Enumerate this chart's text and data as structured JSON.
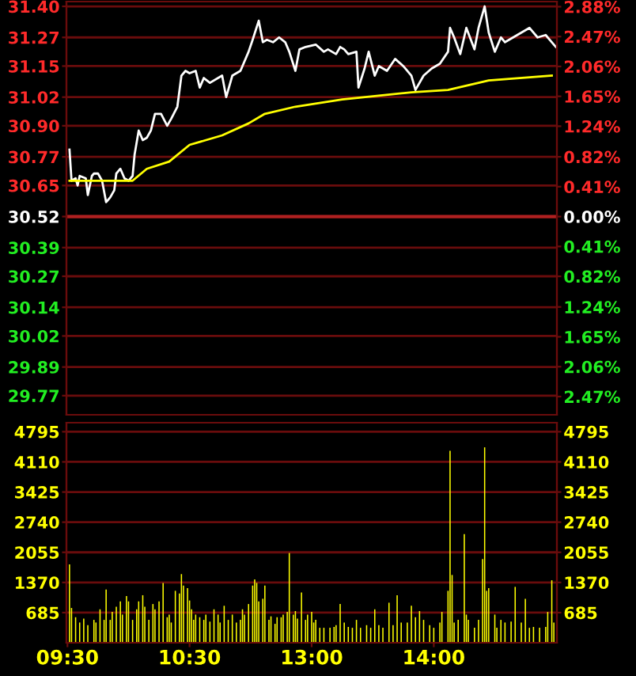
{
  "chart_data": [
    {
      "type": "line",
      "series": [
        {
          "color": "#ffffff",
          "values": [
            null,
            30.8,
            30.67,
            null,
            30.68,
            30.65,
            30.69,
            null,
            null,
            30.68,
            30.61,
            null,
            30.69,
            30.7,
            null,
            30.7,
            null,
            30.67,
            null,
            30.58,
            null,
            30.6,
            null,
            30.63,
            30.7,
            null,
            30.72,
            null,
            30.68,
            null,
            30.67,
            null,
            30.69,
            30.78,
            null,
            30.88,
            null,
            30.84,
            null,
            30.85,
            null,
            30.88,
            null,
            30.95,
            null,
            null,
            30.95,
            null,
            null,
            30.9,
            null,
            30.93,
            null,
            null,
            30.98,
            null,
            31.11,
            null,
            31.13,
            null,
            31.12,
            null,
            null,
            31.13,
            null,
            31.06,
            null,
            31.1,
            null,
            null,
            31.08,
            null,
            null,
            null,
            31.1,
            null,
            31.11,
            null,
            31.02,
            null,
            null,
            31.11,
            null,
            null,
            null,
            31.13,
            null,
            null,
            null,
            31.21,
            null,
            31.26,
            null,
            null,
            31.34,
            null,
            31.25,
            null,
            31.26,
            null,
            null,
            31.25,
            null,
            null,
            31.27,
            null,
            null,
            31.25,
            null,
            31.21,
            null,
            null,
            31.13,
            null,
            31.22,
            null,
            null,
            31.23,
            null,
            null,
            null,
            null,
            31.24,
            null,
            null,
            null,
            31.21,
            null,
            31.22,
            null,
            null,
            null,
            31.2,
            null,
            31.23,
            null,
            31.22,
            null,
            31.2,
            null,
            null,
            null,
            31.21,
            31.06,
            null,
            null,
            31.14,
            null,
            31.21,
            null,
            null,
            31.11,
            null,
            31.15,
            null,
            null,
            null,
            31.13,
            null,
            null,
            null,
            31.18,
            null,
            null,
            null,
            31.15,
            null,
            null,
            null,
            31.11,
            null,
            31.05,
            null,
            null,
            null,
            31.11,
            null,
            null,
            null,
            31.14,
            null,
            null,
            null,
            31.16,
            null,
            null,
            null,
            31.21,
            31.31,
            null,
            31.27,
            null,
            null,
            31.2,
            null,
            null,
            31.31,
            null,
            null,
            null,
            31.22,
            null,
            31.31,
            null,
            null,
            31.4,
            null,
            31.29,
            null,
            null,
            31.21,
            null,
            null,
            31.27,
            null,
            31.25,
            null,
            null,
            null,
            31.27,
            null,
            null,
            null,
            31.29,
            null,
            null,
            null,
            31.31,
            null,
            null,
            null,
            31.27,
            null,
            null,
            null,
            31.28,
            null,
            31.26,
            null,
            null,
            31.23
          ]
        },
        {
          "color": "#ffff00",
          "values": [
            null,
            30.67,
            null,
            null,
            null,
            null,
            null,
            null,
            null,
            null,
            null,
            null,
            null,
            null,
            null,
            null,
            null,
            null,
            null,
            null,
            null,
            null,
            null,
            null,
            null,
            null,
            null,
            null,
            null,
            null,
            null,
            null,
            30.67,
            null,
            null,
            null,
            null,
            null,
            null,
            30.72,
            null,
            null,
            null,
            null,
            null,
            null,
            null,
            null,
            null,
            null,
            30.75,
            null,
            null,
            null,
            null,
            null,
            null,
            null,
            null,
            null,
            30.82,
            null,
            null,
            null,
            null,
            null,
            null,
            null,
            null,
            null,
            null,
            null,
            null,
            null,
            null,
            null,
            30.86,
            null,
            null,
            null,
            null,
            null,
            null,
            null,
            null,
            null,
            null,
            null,
            null,
            30.91,
            null,
            null,
            null,
            null,
            null,
            null,
            null,
            30.95,
            null,
            null,
            null,
            null,
            null,
            null,
            null,
            null,
            null,
            null,
            null,
            null,
            null,
            null,
            30.98,
            null,
            null,
            null,
            null,
            null,
            null,
            null,
            null,
            null,
            null,
            null,
            null,
            null,
            null,
            null,
            null,
            null,
            null,
            null,
            null,
            null,
            null,
            31.01,
            null,
            null,
            null,
            null,
            null,
            null,
            null,
            null,
            null,
            null,
            null,
            null,
            null,
            null,
            null,
            null,
            null,
            null,
            null,
            null,
            null,
            null,
            null,
            null,
            null,
            null,
            null,
            null,
            null,
            null,
            null,
            null,
            null,
            31.04,
            null,
            null,
            null,
            null,
            null,
            null,
            null,
            null,
            null,
            null,
            null,
            null,
            null,
            null,
            null,
            null,
            null,
            31.05,
            null,
            null,
            null,
            null,
            null,
            null,
            null,
            null,
            null,
            null,
            null,
            null,
            null,
            null,
            null,
            null,
            null,
            null,
            null,
            31.09,
            null,
            null,
            null,
            null,
            null,
            null,
            null,
            null,
            null,
            null,
            null,
            null,
            null,
            null,
            null,
            null,
            null,
            null,
            null,
            null,
            null,
            null,
            null,
            null,
            null,
            null,
            null,
            null,
            null,
            null,
            31.11,
            null,
            null
          ]
        }
      ],
      "ylim": [
        29.69,
        31.42
      ],
      "yticks": [
        {
          "value": 31.4,
          "label": "31.40"
        },
        31.27,
        {
          "value": 31.15,
          "label": "31.15"
        },
        31.02,
        {
          "value": 30.9,
          "label": "30.90"
        },
        30.77,
        30.65,
        30.52,
        30.39,
        30.27,
        30.14,
        30.02,
        29.89,
        29.77
      ],
      "y2lim": [
        -2.72,
        2.95
      ],
      "y2ticks": [
        {
          "value": 2.88,
          "label": "2.88%"
        },
        {
          "value": 2.47,
          "label": "2.47%"
        },
        {
          "value": 2.06,
          "label": "2.06%"
        },
        {
          "value": 1.65,
          "label": "1.65%"
        },
        {
          "value": 1.24,
          "label": "1.24%"
        },
        {
          "value": 0.82,
          "label": "0.82%"
        },
        {
          "value": 0.41,
          "label": "0.41%"
        },
        {
          "value": 0,
          "label": "0.00%"
        },
        {
          "value": -0.41,
          "label": "0.41%"
        },
        {
          "value": -0.82,
          "label": "0.82%"
        },
        {
          "value": -1.24,
          "label": "1.24%"
        },
        {
          "value": -1.65,
          "label": "1.65%"
        },
        {
          "value": -2.06,
          "label": "2.06%"
        },
        {
          "value": -2.47,
          "label": "2.47%"
        }
      ],
      "ref_lines": [
        {
          "axis": "y",
          "value": 30.52,
          "color": "#b02020"
        }
      ],
      "grid": "y",
      "tick_labels": "y"
    },
    {
      "type": "bar",
      "color": "#ffff00",
      "categories": [
        "09:30",
        null,
        null,
        null,
        null,
        null,
        null,
        null,
        null,
        null,
        null,
        null,
        null,
        null,
        null,
        null,
        null,
        null,
        null,
        null,
        null,
        null,
        null,
        null,
        null,
        null,
        null,
        null,
        null,
        null,
        null,
        null,
        null,
        null,
        null,
        null,
        null,
        null,
        null,
        null,
        null,
        null,
        null,
        null,
        null,
        null,
        null,
        null,
        null,
        null,
        null,
        null,
        null,
        null,
        null,
        null,
        null,
        null,
        null,
        null,
        "10:30",
        null,
        null,
        null,
        null,
        null,
        null,
        null,
        null,
        null,
        null,
        null,
        null,
        null,
        null,
        null,
        null,
        null,
        null,
        null,
        null,
        null,
        null,
        null,
        null,
        null,
        null,
        null,
        null,
        null,
        null,
        null,
        null,
        null,
        null,
        null,
        null,
        null,
        null,
        null,
        null,
        null,
        null,
        null,
        null,
        null,
        null,
        null,
        null,
        null,
        null,
        null,
        null,
        null,
        null,
        null,
        null,
        null,
        null,
        null,
        "13:00",
        null,
        null,
        null,
        null,
        null,
        null,
        null,
        null,
        null,
        null,
        null,
        null,
        null,
        null,
        null,
        null,
        null,
        null,
        null,
        null,
        null,
        null,
        null,
        null,
        null,
        null,
        null,
        null,
        null,
        null,
        null,
        null,
        null,
        null,
        null,
        null,
        null,
        null,
        null,
        null,
        null,
        null,
        null,
        null,
        null,
        null,
        null,
        null,
        null,
        null,
        null,
        null,
        null,
        null,
        null,
        null,
        null,
        null,
        null,
        "14:00",
        null,
        null,
        null,
        null,
        null,
        null,
        null,
        null,
        null,
        null,
        null,
        null,
        null,
        null,
        null,
        null,
        null,
        null,
        null,
        null,
        null,
        null,
        null,
        null,
        null,
        null,
        null,
        null,
        null,
        null,
        null,
        null,
        null,
        null,
        null,
        null,
        null,
        null,
        null,
        null,
        null,
        null,
        null,
        null,
        null,
        null,
        null,
        null,
        null,
        null,
        null,
        null,
        null,
        null,
        null,
        null,
        null,
        null,
        null,
        null
      ],
      "values": [
        null,
        1780,
        790,
        null,
        580,
        null,
        460,
        null,
        550,
        null,
        400,
        null,
        null,
        520,
        460,
        null,
        760,
        null,
        520,
        1210,
        null,
        520,
        700,
        null,
        820,
        null,
        940,
        640,
        null,
        1060,
        940,
        null,
        520,
        null,
        760,
        940,
        null,
        1080,
        820,
        null,
        520,
        null,
        880,
        760,
        null,
        940,
        null,
        1360,
        null,
        580,
        640,
        460,
        null,
        1180,
        null,
        1120,
        1560,
        1300,
        null,
        1240,
        960,
        760,
        520,
        640,
        null,
        580,
        null,
        520,
        640,
        null,
        480,
        null,
        760,
        null,
        640,
        460,
        null,
        840,
        null,
        520,
        null,
        640,
        null,
        460,
        null,
        520,
        760,
        640,
        null,
        880,
        null,
        1300,
        1440,
        1360,
        940,
        null,
        1000,
        1300,
        null,
        520,
        600,
        null,
        430,
        580,
        null,
        580,
        640,
        null,
        700,
        2040,
        null,
        640,
        720,
        550,
        null,
        1140,
        null,
        520,
        640,
        null,
        700,
        460,
        520,
        null,
        340,
        null,
        340,
        null,
        null,
        340,
        null,
        360,
        400,
        null,
        880,
        null,
        460,
        null,
        360,
        null,
        340,
        null,
        520,
        null,
        340,
        null,
        null,
        400,
        null,
        340,
        null,
        760,
        null,
        400,
        null,
        340,
        null,
        null,
        910,
        null,
        400,
        null,
        1080,
        null,
        460,
        null,
        null,
        460,
        null,
        840,
        null,
        580,
        null,
        720,
        null,
        520,
        null,
        null,
        400,
        null,
        340,
        null,
        null,
        460,
        700,
        null,
        null,
        1180,
        4360,
        1540,
        460,
        null,
        520,
        null,
        null,
        2470,
        640,
        520,
        null,
        null,
        340,
        null,
        520,
        null,
        1900,
        4440,
        1180,
        1240,
        null,
        null,
        640,
        340,
        null,
        520,
        null,
        460,
        null,
        null,
        480,
        null,
        1270,
        null,
        null,
        460,
        null,
        1000,
        null,
        340,
        null,
        360,
        null,
        null,
        340,
        null,
        null,
        360,
        700,
        null,
        1420,
        460,
        null
      ],
      "ylim": [
        0,
        5000
      ],
      "yticks": [
        4795,
        4110,
        3425,
        2740,
        2055,
        1370,
        685
      ],
      "y2lim": [
        0,
        5000
      ],
      "y2ticks": [
        4795,
        4110,
        3425,
        2740,
        2055,
        1370,
        685
      ],
      "grid": "y"
    }
  ]
}
